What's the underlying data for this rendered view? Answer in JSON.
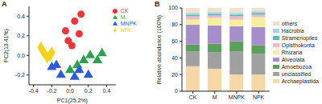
{
  "chart_data": [
    {
      "type": "scatter",
      "title": "A",
      "x_label": "PC1(25.2%)",
      "y_label": "PC2(13.41%)",
      "xlim": [
        -0.45,
        0.5
      ],
      "xticks": [
        -0.4,
        -0.2,
        {
          "value": 0,
          "label": "0.0"
        },
        0.2,
        0.4
      ],
      "ylim": [
        -0.3,
        0.5
      ],
      "yticks": [
        -0.2,
        {
          "value": 0,
          "label": "0.0"
        },
        0.2,
        0.4
      ],
      "grid": false,
      "legend": "top-right",
      "series": [
        {
          "name": "CK",
          "color": "#e8383d",
          "marker": "circle",
          "values": [
            [
              0.12,
              0.42
            ],
            [
              0.05,
              0.35
            ],
            [
              -0.05,
              0.25
            ],
            [
              0.1,
              0.22
            ],
            [
              -0.02,
              0.15
            ],
            [
              0.02,
              0.1
            ]
          ]
        },
        {
          "name": "M",
          "color": "#2e9e4f",
          "marker": "triangle",
          "values": [
            [
              0.15,
              -0.05
            ],
            [
              0.22,
              0.0
            ],
            [
              0.35,
              0.02
            ],
            [
              0.08,
              -0.1
            ],
            [
              0.3,
              -0.05
            ],
            [
              0.0,
              -0.15
            ]
          ]
        },
        {
          "name": "MNPK",
          "color": "#2f5bd3",
          "marker": "triangle",
          "values": [
            [
              -0.15,
              -0.1
            ],
            [
              -0.1,
              -0.2
            ],
            [
              0.05,
              -0.22
            ],
            [
              -0.2,
              -0.12
            ],
            [
              0.1,
              -0.15
            ],
            [
              0.2,
              -0.2
            ]
          ]
        },
        {
          "name": "NPK",
          "color": "#f2d21b",
          "marker": "diamond",
          "values": [
            [
              -0.3,
              0.05
            ],
            [
              -0.28,
              0.02
            ],
            [
              -0.25,
              -0.02
            ],
            [
              -0.22,
              0.0
            ],
            [
              -0.32,
              0.08
            ],
            [
              -0.2,
              0.03
            ]
          ]
        }
      ]
    },
    {
      "type": "bar",
      "title": "B",
      "y_label": "Relative abundance (100%)",
      "categories": [
        "CK",
        "M",
        "MNPK",
        "NPK"
      ],
      "ylim": [
        0,
        100
      ],
      "yticks": [
        0,
        20,
        40,
        60,
        80,
        100
      ],
      "stacked": true,
      "grid": false,
      "legend": "right",
      "series": [
        {
          "name": "Archaeplastida",
          "color": "#f5d7a8",
          "values": [
            30,
            27,
            20,
            20
          ]
        },
        {
          "name": "unclassified",
          "color": "#a0a0a0",
          "values": [
            18,
            20,
            28,
            25
          ]
        },
        {
          "name": "Amoebozoa",
          "color": "#5aa05a",
          "values": [
            8,
            10,
            12,
            10
          ]
        },
        {
          "name": "Alveolata",
          "color": "#a58ec9",
          "values": [
            24,
            22,
            18,
            22
          ]
        },
        {
          "name": "Rhizaria",
          "color": "#f3eea0",
          "values": [
            6,
            9,
            8,
            12
          ]
        },
        {
          "name": "Opisthokonta",
          "color": "#f4b8c8",
          "values": [
            4,
            3,
            4,
            3
          ]
        },
        {
          "name": "Stramenopiles",
          "color": "#5fb8b8",
          "values": [
            2,
            2,
            2,
            2
          ]
        },
        {
          "name": "Hacrobia",
          "color": "#a8d0e8",
          "values": [
            2,
            2,
            2,
            2
          ]
        },
        {
          "name": "others",
          "color": "#efe2cc",
          "values": [
            6,
            5,
            6,
            4
          ]
        }
      ]
    }
  ]
}
